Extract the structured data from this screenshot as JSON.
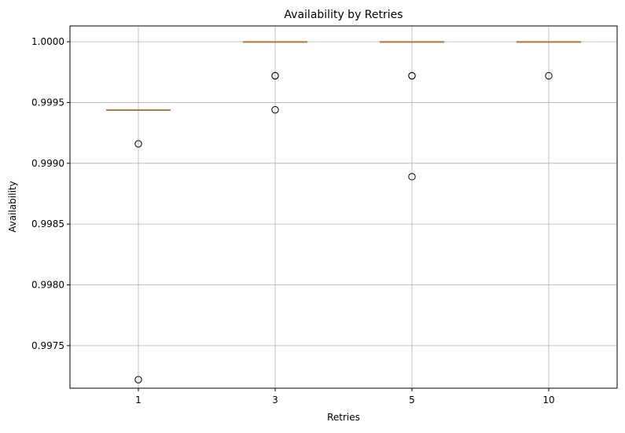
{
  "chart_data": {
    "type": "box",
    "title": "Availability by Retries",
    "xlabel": "Retries",
    "ylabel": "Availability",
    "categories": [
      "1",
      "3",
      "5",
      "10"
    ],
    "ylim": [
      0.99715,
      1.00013
    ],
    "yticks": [
      0.9975,
      0.998,
      0.9985,
      0.999,
      0.9995,
      1.0
    ],
    "ytick_labels": [
      "0.9975",
      "0.9980",
      "0.9985",
      "0.9990",
      "0.9995",
      "1.0000"
    ],
    "grid": true,
    "boxes": [
      {
        "category": "1",
        "q1": 0.99944,
        "median": 0.99944,
        "q3": 0.99944,
        "whisker_low": 0.99944,
        "whisker_high": 0.99944,
        "outliers": [
          0.99916,
          0.99722
        ]
      },
      {
        "category": "3",
        "q1": 1.0,
        "median": 1.0,
        "q3": 1.0,
        "whisker_low": 1.0,
        "whisker_high": 1.0,
        "outliers": [
          0.99972,
          0.99972,
          0.99944
        ]
      },
      {
        "category": "5",
        "q1": 1.0,
        "median": 1.0,
        "q3": 1.0,
        "whisker_low": 1.0,
        "whisker_high": 1.0,
        "outliers": [
          0.99972,
          0.99972,
          0.99889
        ]
      },
      {
        "category": "10",
        "q1": 1.0,
        "median": 1.0,
        "q3": 1.0,
        "whisker_low": 1.0,
        "whisker_high": 1.0,
        "outliers": [
          0.99972
        ]
      }
    ],
    "colors": {
      "median": "#d9853b",
      "grid": "#b0b0b0",
      "outlier": "#000000",
      "axes": "#000000"
    }
  }
}
